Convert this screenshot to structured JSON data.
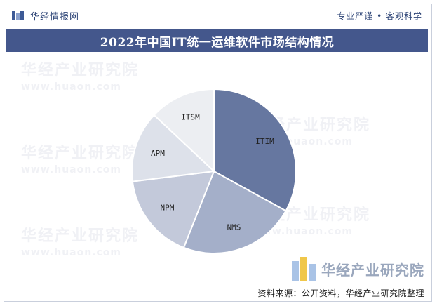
{
  "header": {
    "brand": "华经情报网",
    "slogan": "专业严谨 • 客观科学"
  },
  "title": "2022年中国IT统一运维软件市场结构情况",
  "watermark": {
    "cn": "华经产业研究院",
    "en": "www.huaon.com"
  },
  "footer": {
    "logo_text": "华经产业研究院",
    "source": "资料来源：公开资料，华经产业研究院整理"
  },
  "colors": {
    "title_bar": "#44578c",
    "ITIM": "#6677a0",
    "NMS": "#a4afc9",
    "NPM": "#c3c9da",
    "APM": "#dde1ea",
    "ITSM": "#eceef2"
  },
  "chart_data": {
    "type": "pie",
    "title": "2022年中国IT统一运维软件市场结构情况",
    "start_angle_deg": 0,
    "direction": "clockwise",
    "slices": [
      {
        "label": "ITIM",
        "value": 33
      },
      {
        "label": "NMS",
        "value": 23
      },
      {
        "label": "NPM",
        "value": 17
      },
      {
        "label": "APM",
        "value": 14
      },
      {
        "label": "ITSM",
        "value": 13
      }
    ]
  }
}
